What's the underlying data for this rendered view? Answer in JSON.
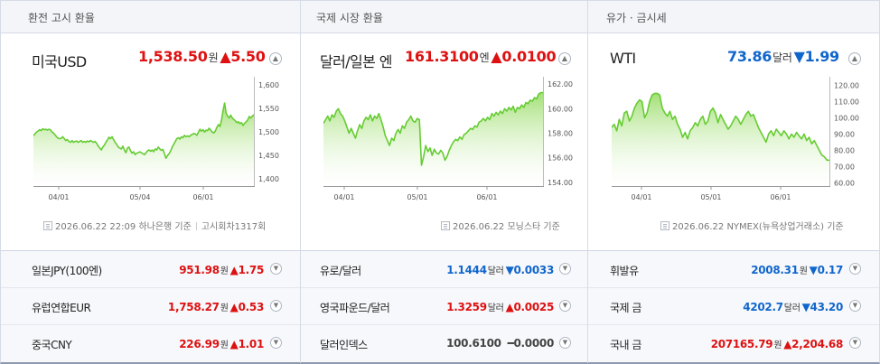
{
  "colors": {
    "up": "#dd1111",
    "down": "#1166cc",
    "flat": "#444444",
    "line": "#66cc33"
  },
  "sections": [
    {
      "title": "환전 고시 환율",
      "main": {
        "name": "미국USD",
        "value": "1,538.50",
        "unit": "원",
        "change": "▲5.50",
        "dir": "up"
      },
      "source": {
        "date": "2026.06.22 22:09",
        "provider": "하나은행 기준",
        "round": "고시회차1317회"
      },
      "rows": [
        {
          "name": "일본JPY(100엔)",
          "value": "951.98",
          "unit": "원",
          "change": "▲1.75",
          "dir": "up"
        },
        {
          "name": "유럽연합EUR",
          "value": "1,758.27",
          "unit": "원",
          "change": "▲0.53",
          "dir": "up"
        },
        {
          "name": "중국CNY",
          "value": "226.99",
          "unit": "원",
          "change": "▲1.01",
          "dir": "up"
        }
      ]
    },
    {
      "title": "국제 시장 환율",
      "main": {
        "name": "달러/일본 엔",
        "value": "161.3100",
        "unit": "엔",
        "change": "▲0.0100",
        "dir": "up"
      },
      "source": {
        "date": "2026.06.22",
        "provider": "모닝스타 기준"
      },
      "rows": [
        {
          "name": "유로/달러",
          "value": "1.1444",
          "unit": "달러",
          "change": "▼0.0033",
          "dir": "down"
        },
        {
          "name": "영국파운드/달러",
          "value": "1.3259",
          "unit": "달러",
          "change": "▲0.0025",
          "dir": "up"
        },
        {
          "name": "달러인덱스",
          "value": "100.6100",
          "unit": "",
          "change": "━0.0000",
          "dir": "flat"
        }
      ]
    },
    {
      "title": "유가 · 금시세",
      "main": {
        "name": "WTI",
        "value": "73.86",
        "unit": "달러",
        "change": "▼1.99",
        "dir": "down"
      },
      "source": {
        "date": "2026.06.22",
        "provider": "NYMEX(뉴욕상업거래소) 기준"
      },
      "rows": [
        {
          "name": "휘발유",
          "value": "2008.31",
          "unit": "원",
          "change": "▼0.17",
          "dir": "down"
        },
        {
          "name": "국제 금",
          "value": "4202.7",
          "unit": "달러",
          "change": "▼43.20",
          "dir": "down"
        },
        {
          "name": "국내 금",
          "value": "207165.79",
          "unit": "원",
          "change": "▲2,204.68",
          "dir": "up"
        }
      ]
    }
  ],
  "chart_data": [
    {
      "type": "area",
      "title": "미국USD",
      "x_ticks": [
        "04/01",
        "05/04",
        "06/01"
      ],
      "y_ticks": [
        1400,
        1450,
        1500,
        1550,
        1600
      ],
      "y_tick_labels": [
        "1,400",
        "1,450",
        "1,500",
        "1,550",
        "1,600"
      ],
      "ylim": [
        1385,
        1610
      ],
      "grid": false,
      "values": [
        1492,
        1496,
        1500,
        1502,
        1505,
        1503,
        1507,
        1505,
        1506,
        1504,
        1506,
        1505,
        1500,
        1498,
        1494,
        1490,
        1487,
        1486,
        1487,
        1490,
        1486,
        1482,
        1484,
        1480,
        1478,
        1482,
        1478,
        1480,
        1481,
        1478,
        1480,
        1482,
        1478,
        1480,
        1478,
        1481,
        1479,
        1482,
        1480,
        1478,
        1480,
        1476,
        1470,
        1466,
        1462,
        1468,
        1472,
        1478,
        1483,
        1489,
        1486,
        1490,
        1484,
        1478,
        1474,
        1468,
        1466,
        1464,
        1470,
        1462,
        1456,
        1466,
        1468,
        1460,
        1455,
        1458,
        1452,
        1455,
        1456,
        1458,
        1456,
        1454,
        1452,
        1456,
        1460,
        1462,
        1459,
        1462,
        1458,
        1464,
        1462,
        1468,
        1464,
        1461,
        1463,
        1454,
        1444,
        1450,
        1454,
        1460,
        1468,
        1474,
        1480,
        1486,
        1488,
        1485,
        1490,
        1488,
        1493,
        1490,
        1492,
        1490,
        1493,
        1495,
        1497,
        1496,
        1493,
        1500,
        1506,
        1502,
        1505,
        1500,
        1504,
        1503,
        1508,
        1504,
        1500,
        1498,
        1502,
        1510,
        1516,
        1512,
        1526,
        1546,
        1562,
        1540,
        1534,
        1530,
        1536,
        1530,
        1527,
        1524,
        1520,
        1522,
        1518,
        1520,
        1514,
        1519,
        1522,
        1526,
        1533,
        1530,
        1534,
        1537
      ]
    },
    {
      "type": "area",
      "title": "달러/일본 엔",
      "x_ticks": [
        "04/01",
        "05/01",
        "06/01"
      ],
      "y_ticks": [
        154,
        156,
        158,
        160,
        162
      ],
      "y_tick_labels": [
        "154.00",
        "156.00",
        "158.00",
        "160.00",
        "162.00"
      ],
      "ylim": [
        153.7,
        162.3
      ],
      "grid": false,
      "values": [
        158.8,
        159.1,
        159.4,
        159.0,
        159.5,
        159.3,
        159.8,
        160.0,
        159.6,
        159.4,
        159.0,
        158.5,
        158.0,
        158.4,
        158.0,
        157.6,
        158.2,
        158.7,
        158.4,
        159.0,
        159.3,
        159.1,
        159.5,
        159.0,
        159.4,
        159.2,
        159.6,
        159.1,
        158.5,
        157.8,
        157.4,
        157.0,
        157.6,
        157.4,
        158.0,
        158.3,
        158.0,
        158.6,
        158.4,
        158.9,
        159.1,
        159.4,
        159.0,
        158.9,
        159.2,
        159.1,
        155.4,
        156.1,
        157.0,
        156.5,
        156.8,
        156.2,
        156.7,
        156.4,
        156.3,
        156.6,
        156.4,
        155.8,
        156.1,
        156.6,
        157.0,
        157.3,
        157.5,
        157.4,
        157.7,
        157.5,
        157.9,
        158.0,
        158.2,
        158.4,
        158.3,
        158.6,
        158.5,
        158.9,
        159.0,
        159.2,
        159.0,
        159.3,
        159.1,
        159.6,
        159.4,
        159.7,
        159.5,
        159.8,
        159.6,
        160.0,
        159.8,
        160.1,
        159.9,
        160.2,
        159.7,
        160.1,
        160.0,
        160.3,
        160.1,
        160.5,
        160.4,
        160.7,
        160.6,
        160.9,
        160.8,
        161.2,
        161.3,
        161.31
      ]
    },
    {
      "type": "area",
      "title": "WTI",
      "x_ticks": [
        "04/01",
        "05/01",
        "06/01"
      ],
      "y_ticks": [
        60,
        70,
        80,
        90,
        100,
        110,
        120
      ],
      "y_tick_labels": [
        "60.00",
        "70.00",
        "80.00",
        "90.00",
        "100.00",
        "110.00",
        "120.00"
      ],
      "ylim": [
        58,
        123
      ],
      "grid": false,
      "values": [
        94,
        96,
        92,
        99,
        95,
        103,
        104,
        98,
        101,
        106,
        109,
        111,
        110,
        100,
        103,
        110,
        114,
        115,
        115,
        114,
        106,
        103,
        101,
        104,
        99,
        101,
        96,
        93,
        88,
        91,
        87,
        92,
        94,
        97,
        95,
        99,
        101,
        96,
        98,
        104,
        106,
        103,
        97,
        102,
        99,
        96,
        93,
        95,
        98,
        101,
        99,
        96,
        99,
        102,
        104,
        101,
        102,
        98,
        94,
        91,
        88,
        85,
        90,
        92,
        89,
        93,
        91,
        89,
        92,
        90,
        87,
        90,
        88,
        91,
        89,
        87,
        90,
        86,
        88,
        84,
        86,
        83,
        80,
        77,
        76,
        74,
        73.86
      ]
    }
  ]
}
